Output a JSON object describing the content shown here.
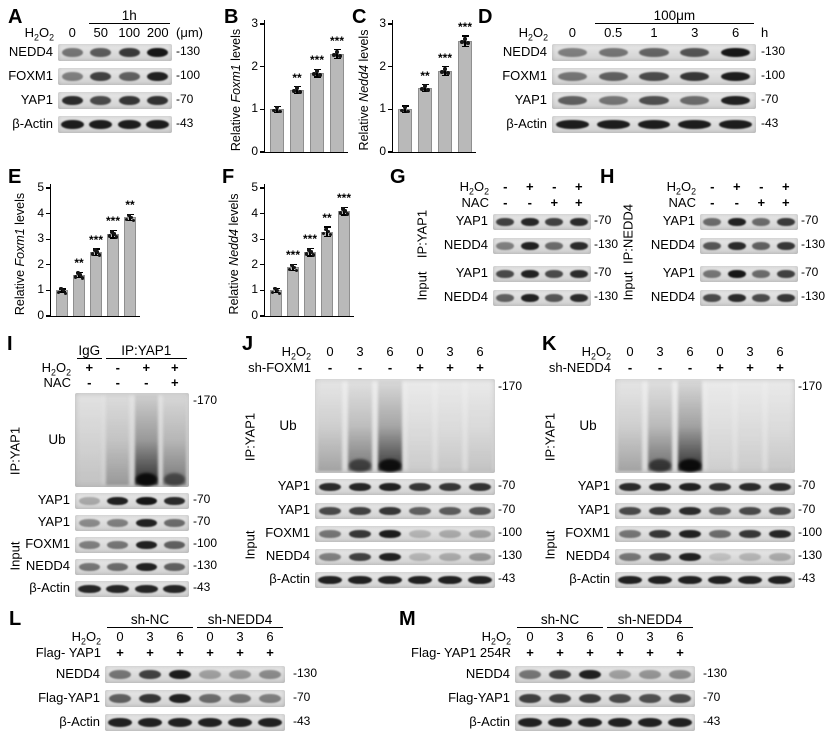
{
  "figure": {
    "background": "#ffffff"
  },
  "colors": {
    "band": "#0c0c0c",
    "strip_bg_light": "#e8e8e8",
    "strip_bg_dark": "#d0d0d0",
    "bar_fill": "#b9b9b9",
    "bar_edge": "#8f8f8f",
    "text": "#000000"
  },
  "panels": {
    "A": {
      "label": "A",
      "type": "blot",
      "groups": [
        {
          "text": "1h"
        }
      ],
      "conditions": [
        {
          "label": "H2O2",
          "values": [
            "0",
            "50",
            "100",
            "200"
          ],
          "suffix": "(μm)"
        }
      ],
      "rows": [
        {
          "label": "NEDD4",
          "marker": "-130",
          "levels": [
            0.5,
            0.62,
            0.78,
            0.95
          ]
        },
        {
          "label": "FOXM1",
          "marker": "-100",
          "levels": [
            0.45,
            0.75,
            0.6,
            0.9
          ]
        },
        {
          "label": "YAP1",
          "marker": "-70",
          "levels": [
            0.85,
            0.7,
            0.8,
            0.82
          ]
        },
        {
          "label": "β-Actin",
          "marker": "-43",
          "levels": [
            0.92,
            0.92,
            0.92,
            0.92
          ]
        }
      ]
    },
    "B": {
      "label": "B",
      "type": "bar",
      "ylabel": {
        "pre": "Relative ",
        "gene": "Foxm1",
        "post": " levels"
      },
      "yticks": [
        "0",
        "1",
        "2",
        "3"
      ],
      "ymax": 3,
      "values": [
        1.0,
        1.45,
        1.85,
        2.3
      ],
      "errors": [
        0.07,
        0.08,
        0.09,
        0.1
      ],
      "sig": [
        "",
        "**",
        "***",
        "***"
      ]
    },
    "C": {
      "label": "C",
      "type": "bar",
      "ylabel": {
        "pre": "Relative ",
        "gene": "Nedd4",
        "post": " levels"
      },
      "yticks": [
        "0",
        "1",
        "2",
        "3"
      ],
      "ymax": 3,
      "values": [
        1.0,
        1.5,
        1.9,
        2.6
      ],
      "errors": [
        0.08,
        0.08,
        0.1,
        0.12
      ],
      "sig": [
        "",
        "**",
        "***",
        "***"
      ]
    },
    "D": {
      "label": "D",
      "type": "blot",
      "groups": [
        {
          "text": "100μm"
        }
      ],
      "conditions": [
        {
          "label": "H2O2",
          "values": [
            "0",
            "0.5",
            "1",
            "3",
            "6"
          ],
          "suffix": "h"
        }
      ],
      "rows": [
        {
          "label": "NEDD4",
          "marker": "-130",
          "levels": [
            0.45,
            0.5,
            0.58,
            0.66,
            0.95
          ]
        },
        {
          "label": "FOXM1",
          "marker": "-100",
          "levels": [
            0.5,
            0.6,
            0.7,
            0.8,
            0.92
          ]
        },
        {
          "label": "YAP1",
          "marker": "-70",
          "levels": [
            0.6,
            0.5,
            0.68,
            0.55,
            0.9
          ]
        },
        {
          "label": "β-Actin",
          "marker": "-43",
          "levels": [
            0.92,
            0.92,
            0.92,
            0.92,
            0.92
          ]
        }
      ]
    },
    "E": {
      "label": "E",
      "type": "bar",
      "ylabel": {
        "pre": "Relative ",
        "gene": "Foxm1",
        "post": " levels"
      },
      "yticks": [
        "0",
        "1",
        "2",
        "3",
        "4",
        "5"
      ],
      "ymax": 5,
      "values": [
        1.0,
        1.6,
        2.5,
        3.2,
        3.85
      ],
      "errors": [
        0.06,
        0.1,
        0.12,
        0.15,
        0.12
      ],
      "sig": [
        "",
        "**",
        "***",
        "***",
        "**"
      ]
    },
    "F": {
      "label": "F",
      "type": "bar",
      "ylabel": {
        "pre": "Relative ",
        "gene": "Nedd4",
        "post": " levels"
      },
      "yticks": [
        "0",
        "1",
        "2",
        "3",
        "4",
        "5"
      ],
      "ymax": 5,
      "values": [
        1.0,
        1.9,
        2.5,
        3.3,
        4.1
      ],
      "errors": [
        0.07,
        0.12,
        0.15,
        0.18,
        0.15
      ],
      "sig": [
        "",
        "***",
        "***",
        "**",
        "***"
      ]
    },
    "G": {
      "label": "G",
      "type": "blot",
      "conditions": [
        {
          "label": "H2O2",
          "values": [
            "-",
            "+",
            "-",
            "+"
          ]
        },
        {
          "label": "NAC",
          "values": [
            "-",
            "-",
            "+",
            "+"
          ]
        }
      ],
      "side_labels": [
        "IP:YAP1",
        "Input"
      ],
      "rows": [
        {
          "label": "YAP1",
          "marker": "-70",
          "levels": [
            0.75,
            0.88,
            0.75,
            0.85
          ]
        },
        {
          "label": "NEDD4",
          "marker": "-130",
          "levels": [
            0.45,
            0.9,
            0.55,
            0.85
          ]
        },
        {
          "label": "YAP1",
          "marker": "-70",
          "levels": [
            0.7,
            0.9,
            0.7,
            0.85
          ]
        },
        {
          "label": "NEDD4",
          "marker": "-130",
          "levels": [
            0.6,
            0.9,
            0.65,
            0.85
          ]
        }
      ]
    },
    "H": {
      "label": "H",
      "type": "blot",
      "conditions": [
        {
          "label": "H2O2",
          "values": [
            "-",
            "+",
            "-",
            "+"
          ]
        },
        {
          "label": "NAC",
          "values": [
            "-",
            "-",
            "+",
            "+"
          ]
        }
      ],
      "side_labels": [
        "IP:NEDD4",
        "Input"
      ],
      "rows": [
        {
          "label": "YAP1",
          "marker": "-70",
          "levels": [
            0.55,
            0.9,
            0.55,
            0.78
          ]
        },
        {
          "label": "NEDD4",
          "marker": "-130",
          "levels": [
            0.65,
            0.85,
            0.6,
            0.8
          ]
        },
        {
          "label": "YAP1",
          "marker": "-70",
          "levels": [
            0.5,
            0.95,
            0.55,
            0.75
          ]
        },
        {
          "label": "NEDD4",
          "marker": "-130",
          "levels": [
            0.7,
            0.85,
            0.7,
            0.8
          ]
        }
      ]
    },
    "I": {
      "label": "I",
      "type": "blot",
      "groups": [
        {
          "text": "IgG"
        },
        {
          "text": "IP:YAP1"
        }
      ],
      "conditions": [
        {
          "label": "H2O2",
          "values": [
            "+",
            "-",
            "+",
            "+"
          ]
        },
        {
          "label": "NAC",
          "values": [
            "-",
            "-",
            "-",
            "+"
          ]
        }
      ],
      "ub": {
        "label": "Ub",
        "marker": "-170",
        "smears": [
          0.05,
          0.3,
          0.95,
          0.5
        ]
      },
      "side_labels": [
        "IP:YAP1",
        "Input"
      ],
      "rows": [
        {
          "label": "YAP1",
          "marker": "-70",
          "levels": [
            0.25,
            0.9,
            0.95,
            0.85
          ]
        },
        {
          "label": "YAP1",
          "marker": "-70",
          "levels": [
            0.4,
            0.45,
            0.9,
            0.55
          ]
        },
        {
          "label": "FOXM1",
          "marker": "-100",
          "levels": [
            0.45,
            0.5,
            0.9,
            0.6
          ]
        },
        {
          "label": "NEDD4",
          "marker": "-130",
          "levels": [
            0.5,
            0.55,
            0.9,
            0.6
          ]
        },
        {
          "label": "β-Actin",
          "marker": "-43",
          "levels": [
            0.88,
            0.88,
            0.88,
            0.88
          ]
        }
      ]
    },
    "J": {
      "label": "J",
      "type": "blot",
      "conditions": [
        {
          "label": "H2O2",
          "values": [
            "0",
            "3",
            "6",
            "0",
            "3",
            "6"
          ]
        },
        {
          "label": "sh-FOXM1",
          "values": [
            "-",
            "-",
            "-",
            "+",
            "+",
            "+"
          ]
        }
      ],
      "ub": {
        "label": "Ub",
        "marker": "-170",
        "smears": [
          0.3,
          0.55,
          0.9,
          0.08,
          0.1,
          0.12
        ]
      },
      "side_labels": [
        "IP:YAP1",
        "Input"
      ],
      "rows": [
        {
          "label": "YAP1",
          "marker": "-70",
          "levels": [
            0.85,
            0.88,
            0.9,
            0.8,
            0.8,
            0.82
          ]
        },
        {
          "label": "YAP1",
          "marker": "-70",
          "levels": [
            0.7,
            0.75,
            0.8,
            0.6,
            0.62,
            0.65
          ]
        },
        {
          "label": "FOXM1",
          "marker": "-100",
          "levels": [
            0.5,
            0.8,
            0.92,
            0.2,
            0.25,
            0.3
          ]
        },
        {
          "label": "NEDD4",
          "marker": "-130",
          "levels": [
            0.45,
            0.75,
            0.9,
            0.2,
            0.25,
            0.35
          ]
        },
        {
          "label": "β-Actin",
          "marker": "-43",
          "levels": [
            0.9,
            0.9,
            0.9,
            0.9,
            0.9,
            0.9
          ]
        }
      ]
    },
    "K": {
      "label": "K",
      "type": "blot",
      "conditions": [
        {
          "label": "H2O2",
          "values": [
            "0",
            "3",
            "6",
            "0",
            "3",
            "6"
          ]
        },
        {
          "label": "sh-NEDD4",
          "values": [
            "-",
            "-",
            "-",
            "+",
            "+",
            "+"
          ]
        }
      ],
      "ub": {
        "label": "Ub",
        "marker": "-170",
        "smears": [
          0.3,
          0.6,
          0.95,
          0.06,
          0.08,
          0.1
        ]
      },
      "side_labels": [
        "IP:YAP1",
        "Input"
      ],
      "rows": [
        {
          "label": "YAP1",
          "marker": "-70",
          "levels": [
            0.85,
            0.88,
            0.9,
            0.82,
            0.85,
            0.85
          ]
        },
        {
          "label": "YAP1",
          "marker": "-70",
          "levels": [
            0.7,
            0.78,
            0.85,
            0.65,
            0.7,
            0.72
          ]
        },
        {
          "label": "FOXM1",
          "marker": "-100",
          "levels": [
            0.5,
            0.8,
            0.9,
            0.55,
            0.8,
            0.88
          ]
        },
        {
          "label": "NEDD4",
          "marker": "-130",
          "levels": [
            0.5,
            0.75,
            0.9,
            0.15,
            0.2,
            0.25
          ]
        },
        {
          "label": "β-Actin",
          "marker": "-43",
          "levels": [
            0.9,
            0.9,
            0.9,
            0.9,
            0.9,
            0.9
          ]
        }
      ]
    },
    "L": {
      "label": "L",
      "type": "blot",
      "groups": [
        {
          "text": "sh-NC"
        },
        {
          "text": "sh-NEDD4"
        }
      ],
      "conditions": [
        {
          "label": "H2O2",
          "values": [
            "0",
            "3",
            "6",
            "0",
            "3",
            "6"
          ]
        },
        {
          "label": "Flag- YAP1",
          "values": [
            "+",
            "+",
            "+",
            "+",
            "+",
            "+"
          ]
        }
      ],
      "rows": [
        {
          "label": "NEDD4",
          "marker": "-130",
          "levels": [
            0.5,
            0.75,
            0.92,
            0.3,
            0.35,
            0.4
          ]
        },
        {
          "label": "Flag-YAP1",
          "marker": "-70",
          "levels": [
            0.6,
            0.8,
            0.9,
            0.55,
            0.5,
            0.45
          ]
        },
        {
          "label": "β-Actin",
          "marker": "-43",
          "levels": [
            0.9,
            0.9,
            0.9,
            0.9,
            0.9,
            0.9
          ]
        }
      ]
    },
    "M": {
      "label": "M",
      "type": "blot",
      "groups": [
        {
          "text": "sh-NC"
        },
        {
          "text": "sh-NEDD4"
        }
      ],
      "conditions": [
        {
          "label": "H2O2",
          "values": [
            "0",
            "3",
            "6",
            "0",
            "3",
            "6"
          ]
        },
        {
          "label": "Flag- YAP1 254R",
          "values": [
            "+",
            "+",
            "+",
            "+",
            "+",
            "+"
          ]
        }
      ],
      "rows": [
        {
          "label": "NEDD4",
          "marker": "-130",
          "levels": [
            0.5,
            0.75,
            0.9,
            0.3,
            0.35,
            0.4
          ]
        },
        {
          "label": "Flag-YAP1",
          "marker": "-70",
          "levels": [
            0.75,
            0.75,
            0.78,
            0.7,
            0.68,
            0.7
          ]
        },
        {
          "label": "β-Actin",
          "marker": "-43",
          "levels": [
            0.9,
            0.9,
            0.9,
            0.9,
            0.9,
            0.9
          ]
        }
      ]
    }
  },
  "chart_data": [
    {
      "type": "bar",
      "panel": "B",
      "ylabel": "Relative Foxm1 levels",
      "ylim": [
        0,
        3
      ],
      "values": [
        1.0,
        1.45,
        1.85,
        2.3
      ],
      "errors": [
        0.07,
        0.08,
        0.09,
        0.1
      ],
      "significance": [
        "",
        "**",
        "***",
        "***"
      ]
    },
    {
      "type": "bar",
      "panel": "C",
      "ylabel": "Relative Nedd4 levels",
      "ylim": [
        0,
        3
      ],
      "values": [
        1.0,
        1.5,
        1.9,
        2.6
      ],
      "errors": [
        0.08,
        0.08,
        0.1,
        0.12
      ],
      "significance": [
        "",
        "**",
        "***",
        "***"
      ]
    },
    {
      "type": "bar",
      "panel": "E",
      "ylabel": "Relative Foxm1 levels",
      "ylim": [
        0,
        5
      ],
      "values": [
        1.0,
        1.6,
        2.5,
        3.2,
        3.85
      ],
      "errors": [
        0.06,
        0.1,
        0.12,
        0.15,
        0.12
      ],
      "significance": [
        "",
        "**",
        "***",
        "***",
        "**"
      ]
    },
    {
      "type": "bar",
      "panel": "F",
      "ylabel": "Relative Nedd4 levels",
      "ylim": [
        0,
        5
      ],
      "values": [
        1.0,
        1.9,
        2.5,
        3.3,
        4.1
      ],
      "errors": [
        0.07,
        0.12,
        0.15,
        0.18,
        0.15
      ],
      "significance": [
        "",
        "***",
        "***",
        "**",
        "***"
      ]
    }
  ]
}
